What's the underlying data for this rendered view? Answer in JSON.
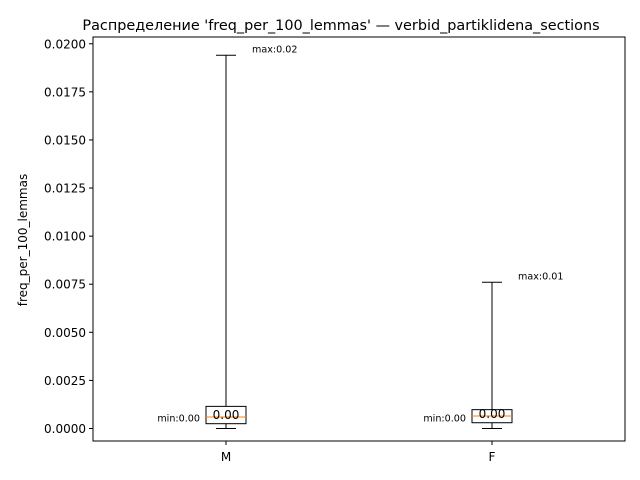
{
  "chart_data": {
    "type": "boxplot",
    "title": "Распределение 'freq_per_100_lemmas' — verbid_partiklidena_sections",
    "xlabel": "",
    "ylabel": "freq_per_100_lemmas",
    "ylim": [
      -0.0006,
      0.0201
    ],
    "yticks": [
      "0.0000",
      "0.0025",
      "0.0050",
      "0.0075",
      "0.0100",
      "0.0125",
      "0.0150",
      "0.0175",
      "0.0200"
    ],
    "ytick_values": [
      0.0,
      0.0025,
      0.005,
      0.0075,
      0.01,
      0.0125,
      0.015,
      0.0175,
      0.02
    ],
    "categories": [
      "M",
      "F"
    ],
    "boxes": [
      {
        "category": "M",
        "whisker_low": 0.0,
        "q1": 0.00025,
        "median": 0.0006,
        "q3": 0.00115,
        "whisker_high": 0.0194,
        "max_label": "max:0.02",
        "min_label": "min:0.00",
        "median_label": "0.00"
      },
      {
        "category": "F",
        "whisker_low": 0.0,
        "q1": 0.0003,
        "median": 0.00065,
        "q3": 0.00098,
        "whisker_high": 0.0076,
        "max_label": "max:0.01",
        "min_label": "min:0.00",
        "median_label": "0.00"
      }
    ],
    "grid": false,
    "legend": "none",
    "colors": {
      "box": "#000000",
      "median": "#ff7f0e",
      "whisker": "#000000"
    }
  }
}
